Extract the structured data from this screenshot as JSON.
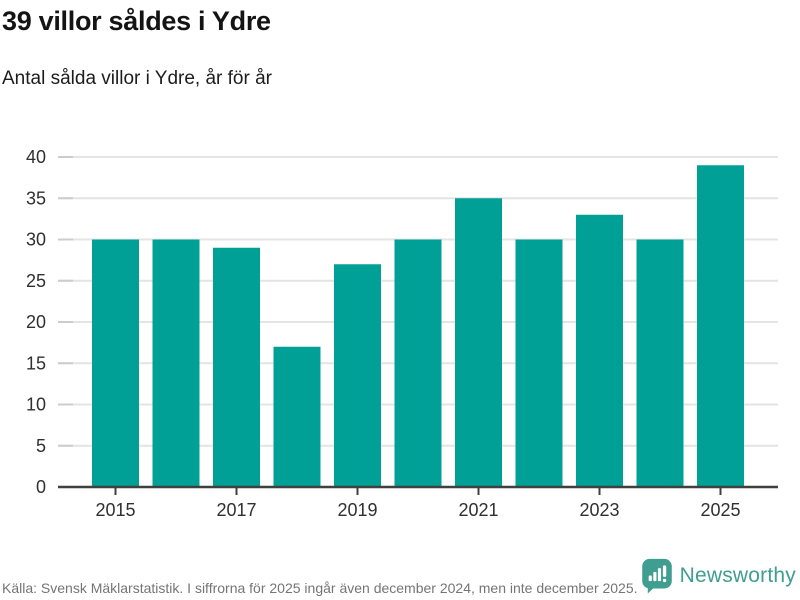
{
  "header": {
    "title": "39 villor såldes i Ydre",
    "subtitle": "Antal sålda villor i Ydre, år för år"
  },
  "chart_data": {
    "type": "bar",
    "title": "39 villor såldes i Ydre",
    "subtitle": "Antal sålda villor i Ydre, år för år",
    "categories": [
      "2015",
      "2016",
      "2017",
      "2018",
      "2019",
      "2020",
      "2021",
      "2022",
      "2023",
      "2024",
      "2025"
    ],
    "values": [
      30,
      30,
      29,
      17,
      27,
      30,
      35,
      30,
      33,
      30,
      39
    ],
    "x_tick_labels": [
      "2015",
      "2017",
      "2019",
      "2021",
      "2023",
      "2025"
    ],
    "y_ticks": [
      0,
      5,
      10,
      15,
      20,
      25,
      30,
      35,
      40
    ],
    "ylim": [
      0,
      40
    ],
    "xlabel": "",
    "ylabel": "",
    "grid": true,
    "legend": "none",
    "bar_color": "#00a096",
    "grid_color": "#e4e4e4",
    "axis_color": "#404040",
    "tick_label_color": "#303030"
  },
  "footer": {
    "source": "Källa: Svensk Mäklarstatistik. I siffrorna för 2025 ingår även december 2024, men inte december 2025.",
    "brand": "Newsworthy",
    "brand_color": "#3f9e90"
  }
}
